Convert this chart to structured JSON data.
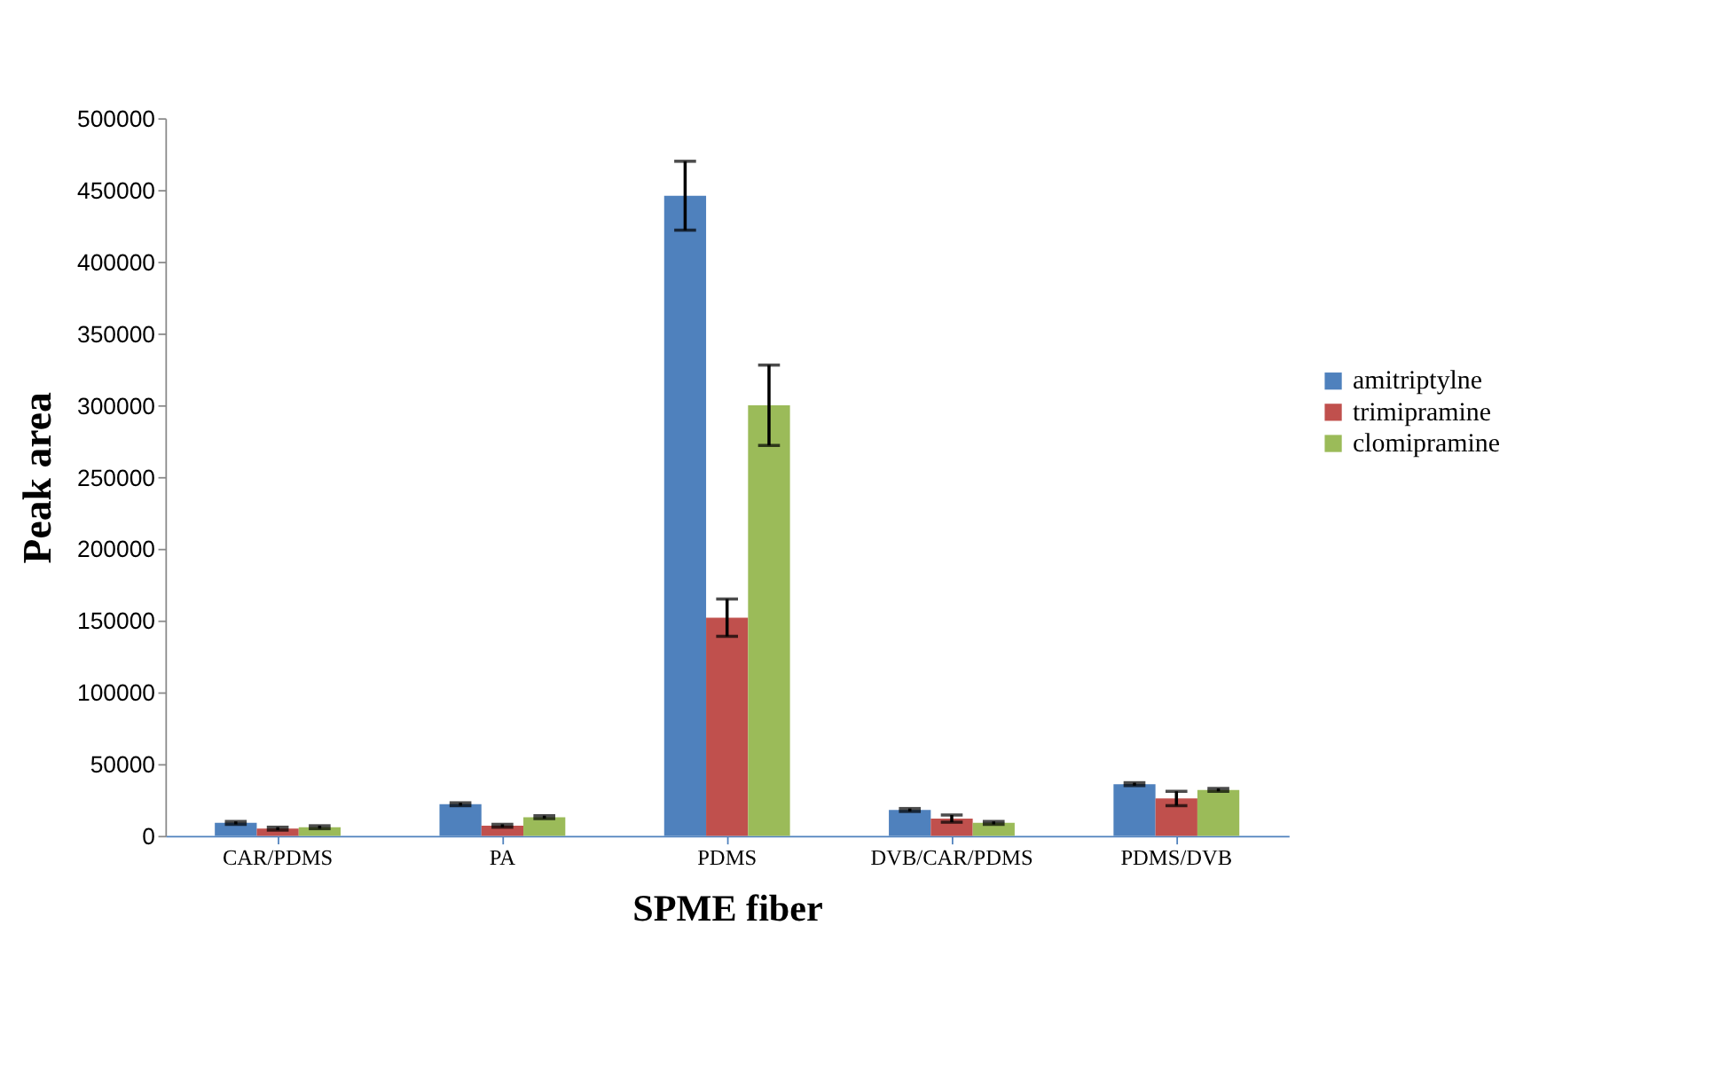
{
  "chart_data": {
    "type": "bar",
    "xlabel": "SPME fiber",
    "ylabel": "Peak area",
    "categories": [
      "CAR/PDMS",
      "PA",
      "PDMS",
      "DVB/CAR/PDMS",
      "PDMS/DVB"
    ],
    "series": [
      {
        "name": "amitriptylne",
        "color": "#4f81bd",
        "values": [
          9000,
          22000,
          446000,
          18000,
          36000
        ],
        "errors": [
          1000,
          1000,
          24000,
          1000,
          1000
        ]
      },
      {
        "name": "trimipramine",
        "color": "#c0504d",
        "values": [
          5000,
          7000,
          152000,
          12000,
          26000
        ],
        "errors": [
          1000,
          1000,
          13000,
          2500,
          5000
        ]
      },
      {
        "name": "clomipramine",
        "color": "#9bbb59",
        "values": [
          6000,
          13000,
          300000,
          9000,
          32000
        ],
        "errors": [
          1000,
          1000,
          28000,
          1000,
          1000
        ]
      }
    ],
    "ylim": [
      0,
      500000
    ],
    "yticks": [
      0,
      50000,
      100000,
      150000,
      200000,
      250000,
      300000,
      350000,
      400000,
      450000,
      500000
    ],
    "grid": false,
    "legend": "right"
  }
}
